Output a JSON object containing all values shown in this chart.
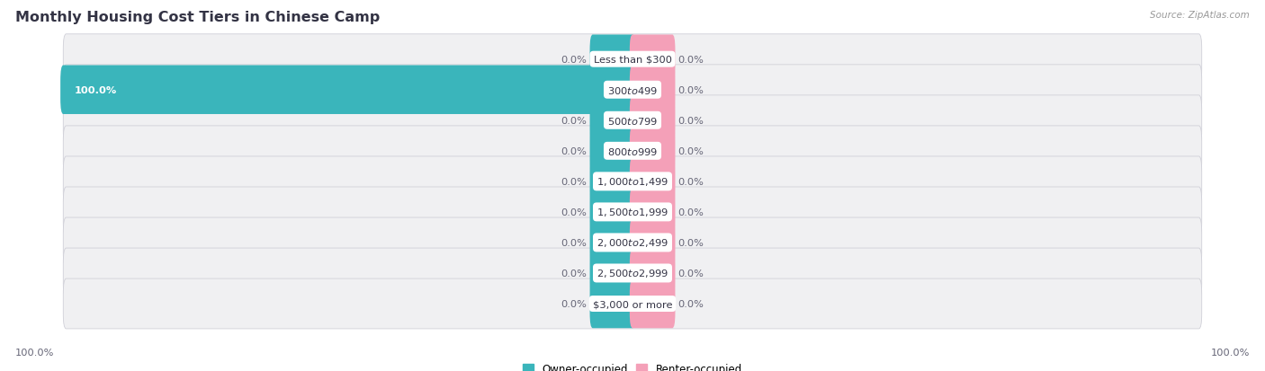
{
  "title": "Monthly Housing Cost Tiers in Chinese Camp",
  "source": "Source: ZipAtlas.com",
  "categories": [
    "Less than $300",
    "$300 to $499",
    "$500 to $799",
    "$800 to $999",
    "$1,000 to $1,499",
    "$1,500 to $1,999",
    "$2,000 to $2,499",
    "$2,500 to $2,999",
    "$3,000 or more"
  ],
  "owner_values": [
    0.0,
    100.0,
    0.0,
    0.0,
    0.0,
    0.0,
    0.0,
    0.0,
    0.0
  ],
  "renter_values": [
    0.0,
    0.0,
    0.0,
    0.0,
    0.0,
    0.0,
    0.0,
    0.0,
    0.0
  ],
  "owner_color": "#3ab5bb",
  "renter_color": "#f4a0b8",
  "row_bg_color": "#f0f0f2",
  "row_border_color": "#d0d0d8",
  "label_color": "#666677",
  "title_color": "#333344",
  "axis_limit": 100.0,
  "stub_size": 7.0,
  "legend_owner_label": "Owner-occupied",
  "legend_renter_label": "Renter-occupied"
}
